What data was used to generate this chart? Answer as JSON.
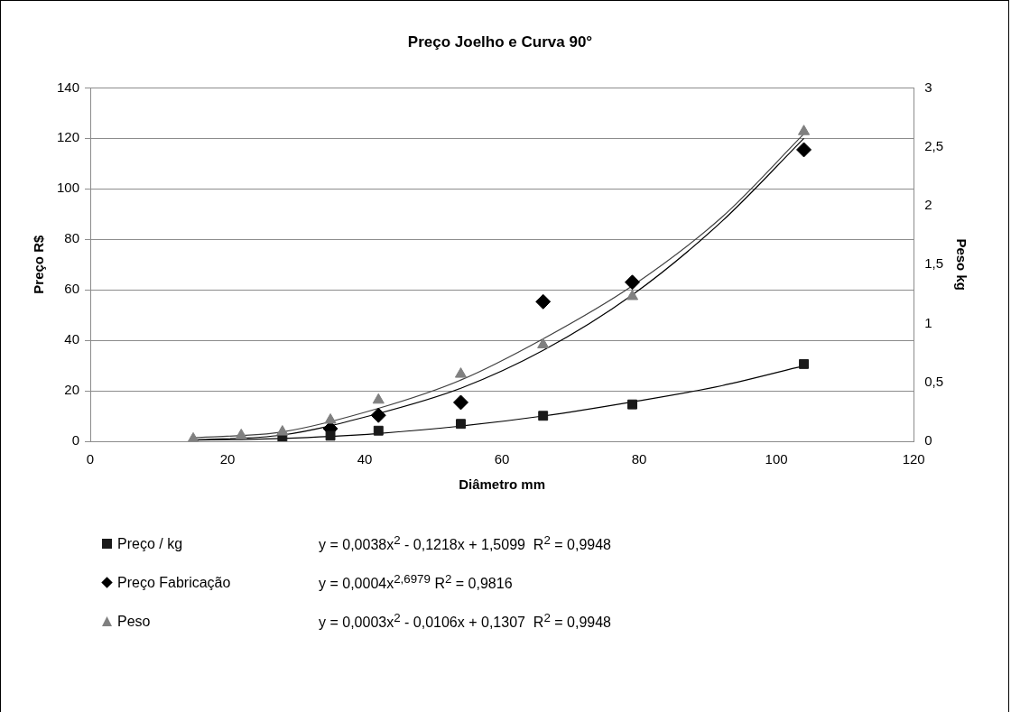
{
  "chart_data": {
    "type": "scatter",
    "title": "Preço Joelho e Curva 90°",
    "xlabel": "Diâmetro mm",
    "ylabel": "Preço R$",
    "y2label": "Peso kg",
    "xlim": [
      0,
      120
    ],
    "xticks": [
      0,
      20,
      40,
      60,
      80,
      100,
      120
    ],
    "ylim": [
      0,
      140
    ],
    "yticks": [
      0,
      20,
      40,
      60,
      80,
      100,
      120,
      140
    ],
    "y2lim": [
      0,
      3
    ],
    "y2ticks": [
      0,
      {
        "value": 0.5,
        "label": "0,5"
      },
      1,
      {
        "value": 1.5,
        "label": "1,5"
      },
      2,
      {
        "value": 2.5,
        "label": "2,5"
      },
      3
    ],
    "grid": "y",
    "legend": "bottom",
    "series": [
      {
        "name": "Preço / kg",
        "type": "scatter",
        "marker": "square",
        "color": "#1a1a1a",
        "x": [
          28,
          35,
          42,
          54,
          66,
          79,
          104
        ],
        "values": [
          1.2,
          2.2,
          4.2,
          6.9,
          10.1,
          14.6,
          30.6
        ]
      },
      {
        "name": "Preço Fabricação",
        "type": "scatter",
        "marker": "diamond",
        "color": "#000000",
        "x": [
          35,
          42,
          54,
          66,
          79,
          104
        ],
        "values": [
          5,
          10.3,
          15.4,
          55.3,
          63,
          115.5
        ]
      },
      {
        "name": "Peso",
        "type": "scatter",
        "marker": "triangle",
        "color": "#808080",
        "axis": "y2",
        "x": [
          15,
          22,
          28,
          35,
          42,
          54,
          66,
          79,
          104
        ],
        "values": [
          0.02,
          0.05,
          0.08,
          0.18,
          0.35,
          0.57,
          0.82,
          1.23,
          2.63
        ]
      },
      {
        "type": "line",
        "color": "#000000",
        "x": [
          15,
          22,
          28,
          35,
          42,
          54,
          66,
          79,
          92,
          104
        ],
        "values": [
          0.5,
          0.7,
          1.1,
          1.9,
          3.1,
          6,
          10,
          15.6,
          22,
          29.9
        ]
      },
      {
        "type": "line",
        "color": "#000000",
        "x": [
          15,
          28,
          42,
          54,
          66,
          79,
          92,
          104
        ],
        "values": [
          0.5,
          2.5,
          11,
          21,
          36,
          58,
          87,
          120
        ]
      },
      {
        "type": "line",
        "color": "#404040",
        "axis": "y2",
        "x": [
          15,
          28,
          42,
          54,
          66,
          79,
          92,
          104
        ],
        "values": [
          0.03,
          0.08,
          0.28,
          0.52,
          0.87,
          1.32,
          1.9,
          2.61
        ]
      }
    ],
    "annotations": [
      "y = 0,0038x$^{2}$ - 0,1218x + 1,5099  R$^{2}$ = 0,9948",
      "y = 0,0004x$^{2,6979}$ R$^{2}$ = 0,9816",
      "y = 0,0003x$^{2}$ - 0,0106x + 0,1307  R$^{2}$ = 0,9948"
    ]
  }
}
